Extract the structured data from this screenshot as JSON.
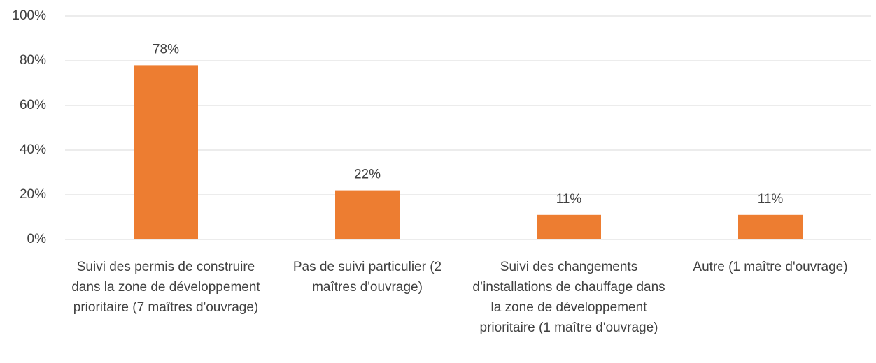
{
  "chart_data": {
    "type": "bar",
    "categories": [
      "Suivi des permis de construire dans la zone de développement prioritaire (7 maîtres d'ouvrage)",
      "Pas de suivi particulier (2 maîtres d'ouvrage)",
      "Suivi des changements d’installations de chauffage dans la zone de développement prioritaire (1 maître d'ouvrage)",
      "Autre (1 maître d'ouvrage)"
    ],
    "values": [
      78,
      22,
      11,
      11
    ],
    "value_labels": [
      "78%",
      "22%",
      "11%",
      "11%"
    ],
    "color": "#ed7d31",
    "ylim": [
      0,
      100
    ],
    "yticks": [
      {
        "value": 0,
        "label": "0%"
      },
      {
        "value": 20,
        "label": "20%"
      },
      {
        "value": 40,
        "label": "40%"
      },
      {
        "value": 60,
        "label": "60%"
      },
      {
        "value": 80,
        "label": "80%"
      },
      {
        "value": 100,
        "label": "100%"
      }
    ],
    "grid": true
  }
}
